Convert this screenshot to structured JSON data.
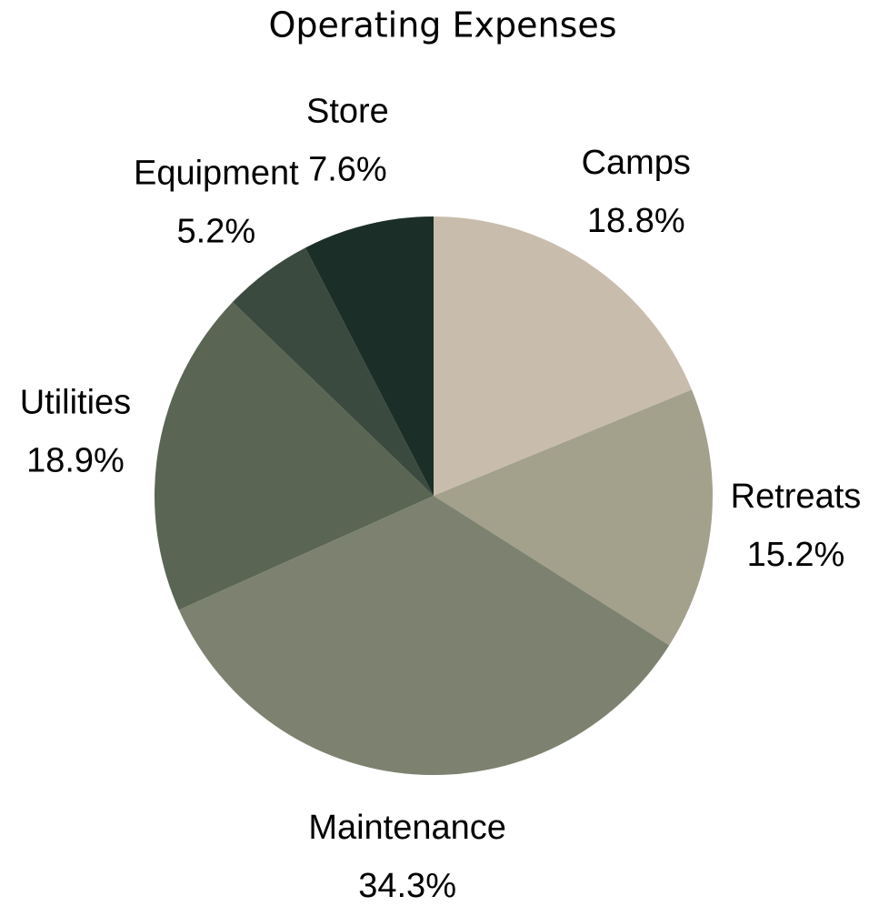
{
  "chart_data": {
    "type": "pie",
    "title": "Operating Expenses",
    "categories": [
      "Camps",
      "Retreats",
      "Maintenance",
      "Utilities",
      "Equipment",
      "Store"
    ],
    "values": [
      18.8,
      15.2,
      34.3,
      18.9,
      5.2,
      7.6
    ],
    "value_labels": [
      "18.8%",
      "15.2%",
      "34.3%",
      "18.9%",
      "5.2%",
      "7.6%"
    ],
    "colors": [
      "#c8bdac",
      "#a3a18c",
      "#7d8270",
      "#5a6554",
      "#3b4a3f",
      "#1c2e28"
    ]
  }
}
